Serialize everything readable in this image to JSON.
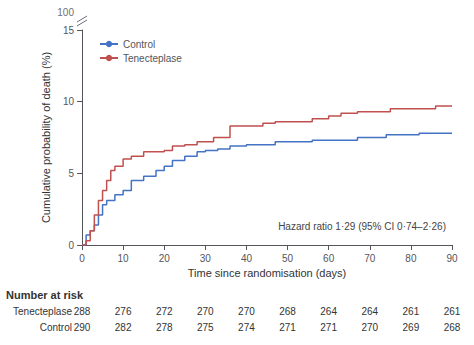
{
  "chart_data": {
    "type": "line",
    "xlabel": "Time since randomisation (days)",
    "ylabel": "Cumulative probability of death (%)",
    "xlim": [
      0,
      90
    ],
    "ylim": [
      0,
      15
    ],
    "xticks": [
      0,
      10,
      20,
      30,
      40,
      50,
      60,
      70,
      80,
      90
    ],
    "yticks": [
      0,
      5,
      10,
      15
    ],
    "grid": false,
    "legend": "upper left",
    "annotations": [
      "Hazard ratio 1·29 (95% CI 0·74–2·26)",
      "100"
    ],
    "series": [
      {
        "name": "Control",
        "color": "#4472C4",
        "x": [
          0,
          1,
          1,
          2,
          2,
          3,
          3,
          4,
          4,
          5,
          5,
          6,
          6,
          8,
          8,
          10,
          10,
          12,
          12,
          15,
          15,
          18,
          18,
          20,
          20,
          22,
          22,
          25,
          25,
          28,
          28,
          30,
          30,
          33,
          33,
          36,
          36,
          40,
          40,
          44,
          44,
          47,
          47,
          50,
          50,
          53,
          53,
          56,
          56,
          60,
          60,
          63,
          63,
          67,
          67,
          70,
          70,
          74,
          74,
          78,
          78,
          82,
          82,
          86,
          86,
          90
        ],
        "values": [
          0,
          0,
          0.7,
          0.7,
          1.0,
          1.0,
          1.4,
          1.4,
          2.1,
          2.1,
          2.8,
          2.8,
          3.1,
          3.1,
          3.5,
          3.5,
          3.8,
          3.8,
          4.5,
          4.5,
          4.8,
          4.8,
          5.2,
          5.2,
          5.5,
          5.5,
          5.9,
          5.9,
          6.2,
          6.2,
          6.5,
          6.5,
          6.6,
          6.6,
          6.7,
          6.7,
          6.9,
          6.9,
          7.0,
          7.0,
          7.0,
          7.0,
          7.2,
          7.2,
          7.2,
          7.2,
          7.2,
          7.2,
          7.3,
          7.3,
          7.3,
          7.3,
          7.3,
          7.3,
          7.5,
          7.5,
          7.5,
          7.5,
          7.7,
          7.7,
          7.7,
          7.7,
          7.8,
          7.8,
          7.8,
          7.8
        ]
      },
      {
        "name": "Tenecteplase",
        "color": "#C0504D",
        "x": [
          0,
          1,
          1,
          2,
          2,
          3,
          3,
          4,
          4,
          5,
          5,
          6,
          6,
          7,
          7,
          8,
          8,
          10,
          10,
          12,
          12,
          15,
          15,
          18,
          18,
          20,
          20,
          22,
          22,
          25,
          25,
          28,
          28,
          32,
          32,
          36,
          36,
          40,
          40,
          44,
          44,
          47,
          47,
          50,
          50,
          53,
          53,
          56,
          56,
          60,
          60,
          63,
          63,
          67,
          67,
          70,
          70,
          75,
          75,
          78,
          78,
          82,
          82,
          86,
          86,
          90
        ],
        "values": [
          0,
          0,
          0.3,
          0.3,
          1.0,
          1.0,
          2.1,
          2.1,
          3.1,
          3.1,
          3.8,
          3.8,
          4.5,
          4.5,
          5.2,
          5.2,
          5.5,
          5.5,
          6.0,
          6.0,
          6.2,
          6.2,
          6.5,
          6.5,
          6.5,
          6.5,
          6.6,
          6.6,
          6.9,
          6.9,
          7.0,
          7.0,
          7.2,
          7.2,
          7.5,
          7.5,
          8.3,
          8.3,
          8.3,
          8.3,
          8.5,
          8.5,
          8.6,
          8.6,
          8.6,
          8.6,
          8.6,
          8.6,
          8.8,
          8.8,
          9.0,
          9.0,
          9.2,
          9.2,
          9.3,
          9.3,
          9.3,
          9.3,
          9.5,
          9.5,
          9.5,
          9.5,
          9.5,
          9.5,
          9.7,
          9.7
        ]
      }
    ],
    "number_at_risk": {
      "label": "Number at risk",
      "times": [
        0,
        10,
        20,
        30,
        40,
        50,
        60,
        70,
        80,
        90
      ],
      "rows": [
        {
          "name": "Tenecteplase",
          "values": [
            288,
            276,
            272,
            270,
            270,
            268,
            264,
            264,
            261,
            261
          ]
        },
        {
          "name": "Control",
          "values": [
            290,
            282,
            278,
            275,
            274,
            271,
            271,
            270,
            269,
            268
          ]
        }
      ]
    }
  }
}
